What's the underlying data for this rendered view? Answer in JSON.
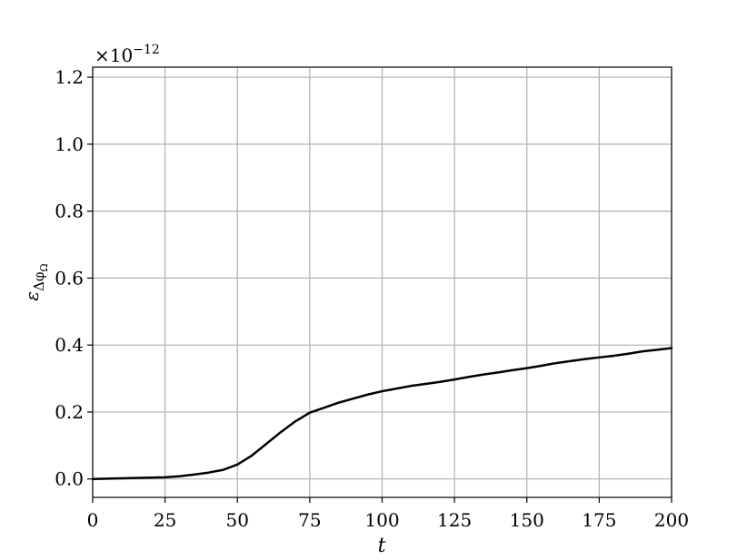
{
  "chart_data": {
    "type": "line",
    "title": "",
    "xlabel": "t",
    "ylabel_main": "ε",
    "ylabel_sub": "Δφ",
    "ylabel_subsub": "Ω",
    "offset_text": "×10",
    "offset_exp": "−12",
    "xlim": [
      0,
      200
    ],
    "ylim": [
      -0.055,
      1.23
    ],
    "grid": true,
    "xticks": [
      0,
      25,
      50,
      75,
      100,
      125,
      150,
      175,
      200
    ],
    "xtick_labels": [
      "0",
      "25",
      "50",
      "75",
      "100",
      "125",
      "150",
      "175",
      "200"
    ],
    "yticks": [
      0.0,
      0.2,
      0.4,
      0.6,
      0.8,
      1.0,
      1.2
    ],
    "ytick_labels": [
      "0.0",
      "0.2",
      "0.4",
      "0.6",
      "0.8",
      "1.0",
      "1.2"
    ],
    "series": [
      {
        "color": "#000000",
        "x": [
          0,
          5,
          10,
          15,
          20,
          25,
          30,
          35,
          40,
          45,
          50,
          55,
          60,
          65,
          70,
          75,
          80,
          85,
          90,
          95,
          100,
          105,
          110,
          115,
          120,
          125,
          130,
          135,
          140,
          145,
          150,
          155,
          160,
          165,
          170,
          175,
          180,
          185,
          190,
          195,
          200
        ],
        "y": [
          0.0,
          0.001,
          0.002,
          0.003,
          0.004,
          0.005,
          0.008,
          0.013,
          0.019,
          0.027,
          0.043,
          0.07,
          0.105,
          0.14,
          0.172,
          0.198,
          0.213,
          0.228,
          0.24,
          0.252,
          0.262,
          0.27,
          0.278,
          0.284,
          0.29,
          0.297,
          0.305,
          0.312,
          0.318,
          0.325,
          0.331,
          0.338,
          0.346,
          0.352,
          0.358,
          0.363,
          0.368,
          0.374,
          0.381,
          0.386,
          0.391
        ]
      }
    ]
  }
}
